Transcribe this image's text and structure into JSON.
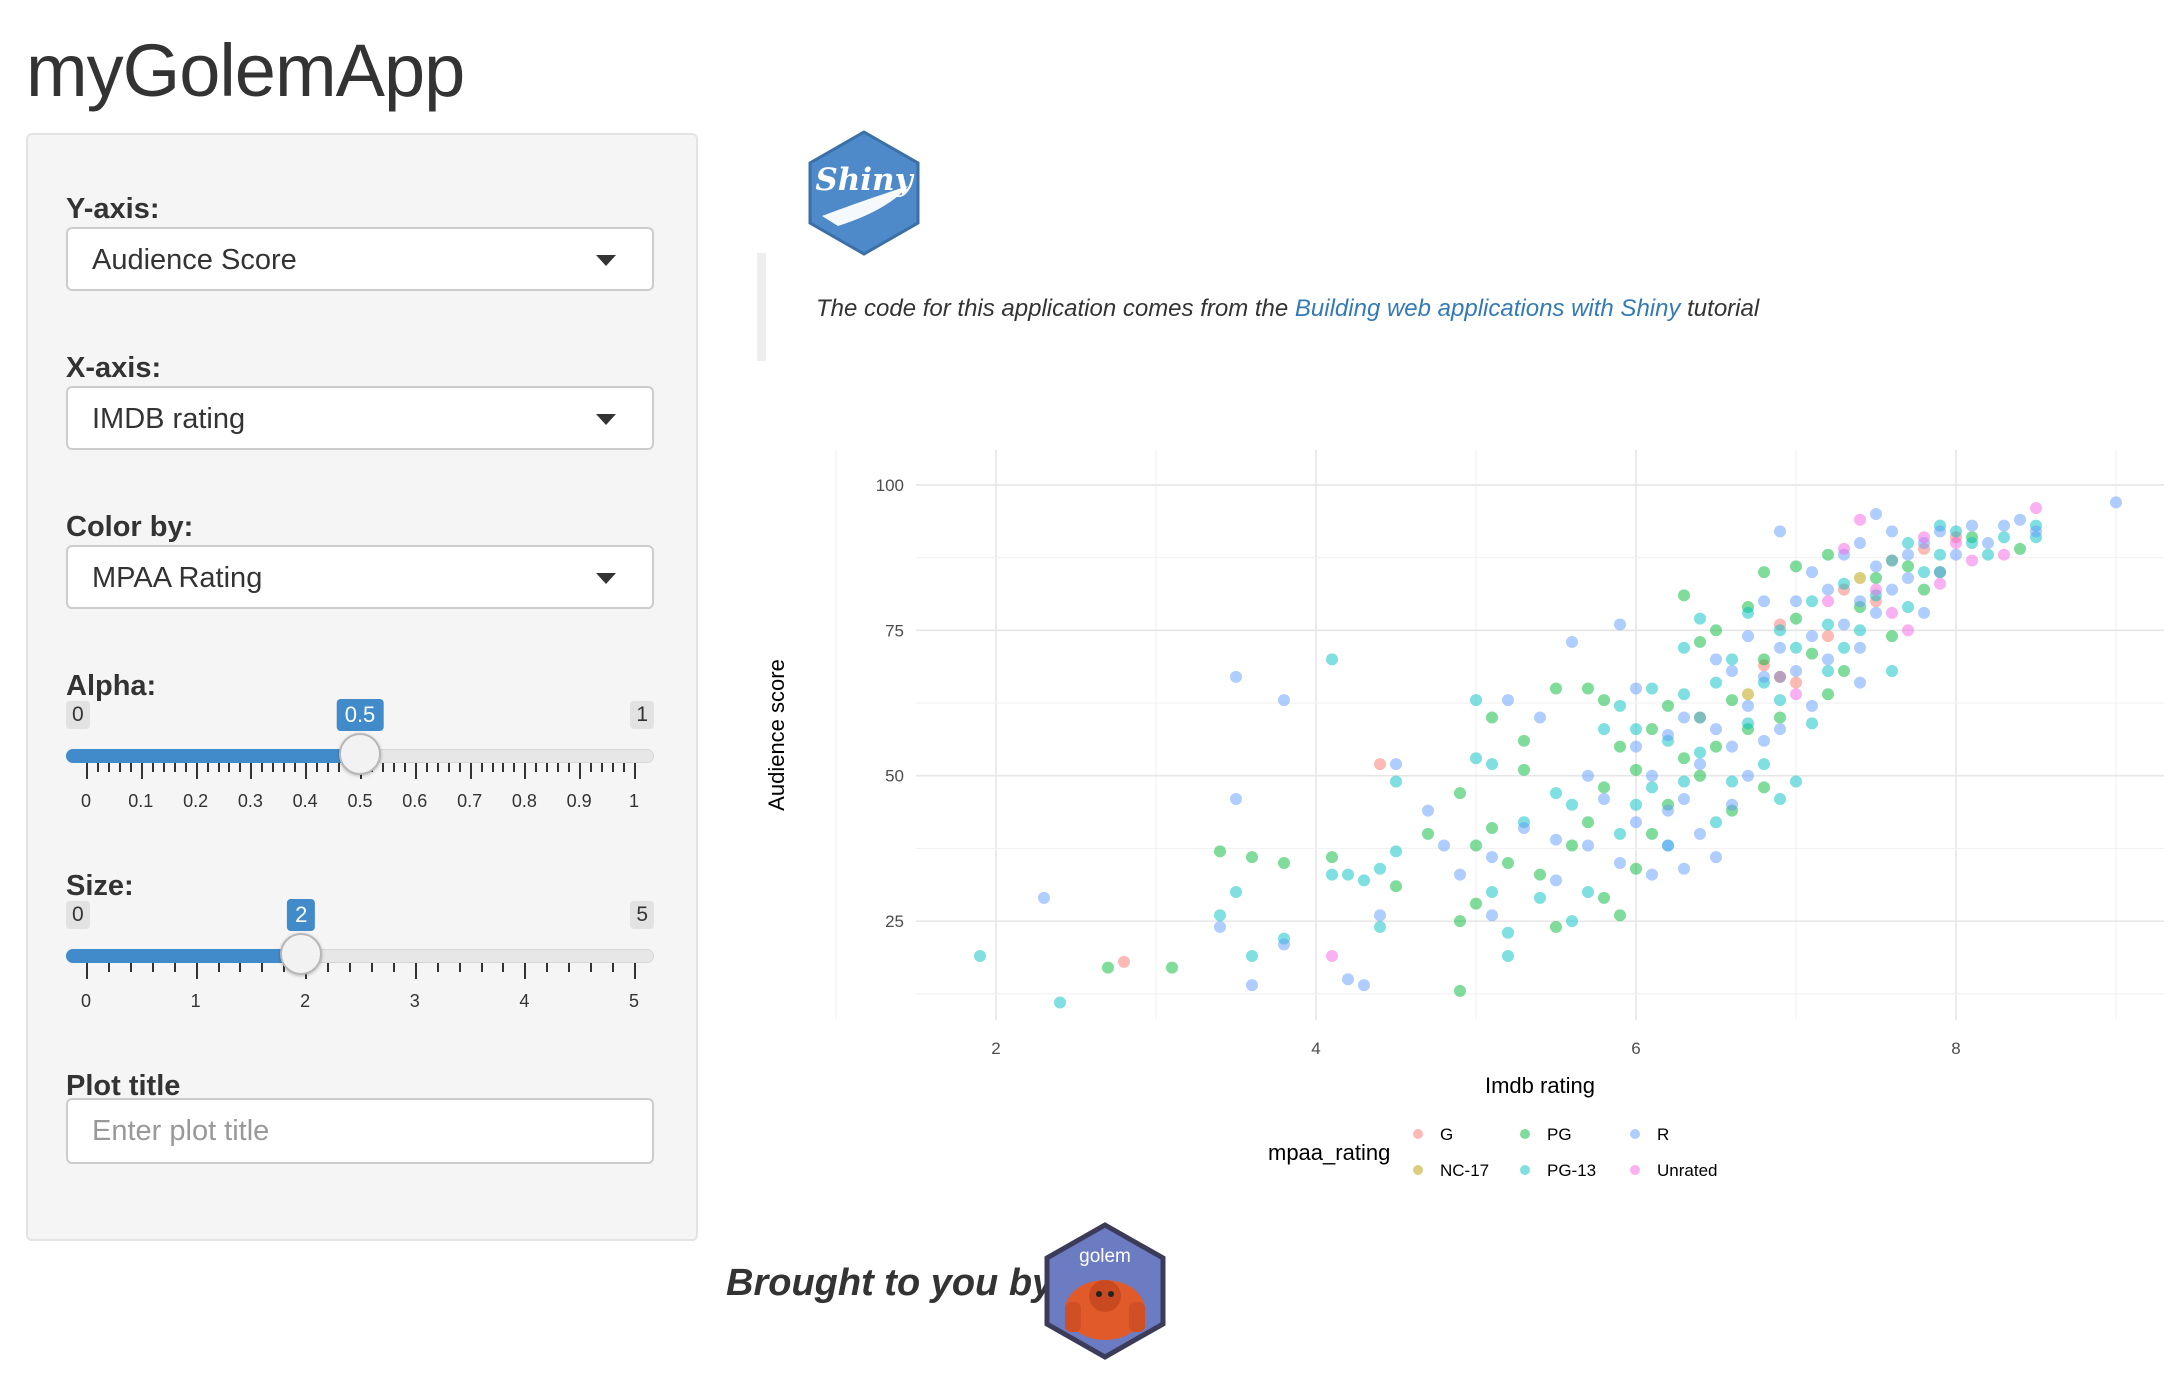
{
  "app": {
    "title": "myGolemApp"
  },
  "sidebar": {
    "y_axis": {
      "label": "Y-axis:",
      "value": "Audience Score"
    },
    "x_axis": {
      "label": "X-axis:",
      "value": "IMDB rating"
    },
    "color_by": {
      "label": "Color by:",
      "value": "MPAA Rating"
    },
    "alpha": {
      "label": "Alpha:",
      "min_label": "0",
      "max_label": "1",
      "value_label": "0.5",
      "min": 0,
      "max": 1,
      "value": 0.5,
      "tick_labels": [
        "0",
        "0.1",
        "0.2",
        "0.3",
        "0.4",
        "0.5",
        "0.6",
        "0.7",
        "0.8",
        "0.9",
        "1"
      ]
    },
    "size": {
      "label": "Size:",
      "min_label": "0",
      "max_label": "5",
      "value_label": "2",
      "min": 0,
      "max": 5,
      "value": 2,
      "tick_labels": [
        "0",
        "1",
        "2",
        "3",
        "4",
        "5"
      ]
    },
    "plot_title": {
      "label": "Plot title",
      "placeholder": "Enter plot title",
      "value": ""
    }
  },
  "main": {
    "shiny_logo_text": "Shiny",
    "quote": {
      "prefix": "The code for this application comes from the ",
      "link_text": "Building web applications with Shiny",
      "suffix": " tutorial"
    },
    "footer": {
      "brought_by": "Brought to you by:",
      "golem_logo_text": "golem"
    }
  },
  "chart_data": {
    "type": "scatter",
    "xlabel": "Imdb rating",
    "ylabel": "Audience score",
    "xlim": [
      1.5,
      9.3
    ],
    "ylim": [
      8,
      106
    ],
    "x_ticks": [
      2,
      4,
      6,
      8
    ],
    "y_ticks": [
      25,
      50,
      75,
      100
    ],
    "grid": true,
    "legend": {
      "title": "mpaa_rating",
      "position": "bottom"
    },
    "colors": {
      "G": "#F8766D",
      "NC-17": "#B79F00",
      "PG": "#00BA38",
      "PG-13": "#00BFC4",
      "R": "#619CFF",
      "Unrated": "#F564E3"
    },
    "series": [
      {
        "name": "G",
        "points": [
          [
            4.4,
            52
          ],
          [
            2.8,
            18
          ],
          [
            6.9,
            76
          ],
          [
            7.2,
            74
          ],
          [
            7.5,
            80
          ],
          [
            7.8,
            89
          ],
          [
            6.4,
            60
          ],
          [
            7.0,
            66
          ],
          [
            7.6,
            87
          ],
          [
            8.0,
            91
          ],
          [
            6.8,
            69
          ],
          [
            7.3,
            82
          ]
        ]
      },
      {
        "name": "NC-17",
        "points": [
          [
            6.7,
            64
          ],
          [
            7.4,
            84
          ]
        ]
      },
      {
        "name": "PG",
        "points": [
          [
            2.7,
            17
          ],
          [
            3.1,
            17
          ],
          [
            3.4,
            37
          ],
          [
            3.6,
            36
          ],
          [
            3.8,
            35
          ],
          [
            4.1,
            36
          ],
          [
            4.5,
            31
          ],
          [
            4.9,
            25
          ],
          [
            4.9,
            13
          ],
          [
            4.9,
            47
          ],
          [
            5.0,
            28
          ],
          [
            5.0,
            38
          ],
          [
            5.1,
            41
          ],
          [
            5.1,
            60
          ],
          [
            5.2,
            35
          ],
          [
            5.3,
            56
          ],
          [
            5.4,
            33
          ],
          [
            5.5,
            24
          ],
          [
            5.5,
            65
          ],
          [
            5.6,
            38
          ],
          [
            5.7,
            42
          ],
          [
            5.7,
            65
          ],
          [
            5.8,
            29
          ],
          [
            5.8,
            48
          ],
          [
            5.8,
            63
          ],
          [
            5.9,
            26
          ],
          [
            5.9,
            55
          ],
          [
            6.0,
            34
          ],
          [
            6.0,
            51
          ],
          [
            6.1,
            40
          ],
          [
            6.1,
            58
          ],
          [
            6.2,
            45
          ],
          [
            6.3,
            53
          ],
          [
            6.3,
            81
          ],
          [
            6.4,
            50
          ],
          [
            6.4,
            73
          ],
          [
            6.5,
            55
          ],
          [
            6.5,
            75
          ],
          [
            6.6,
            44
          ],
          [
            6.6,
            63
          ],
          [
            6.7,
            58
          ],
          [
            6.7,
            79
          ],
          [
            6.8,
            48
          ],
          [
            6.8,
            70
          ],
          [
            6.8,
            85
          ],
          [
            6.9,
            60
          ],
          [
            6.9,
            67
          ],
          [
            7.0,
            77
          ],
          [
            7.0,
            86
          ],
          [
            7.1,
            71
          ],
          [
            7.2,
            88
          ],
          [
            7.3,
            68
          ],
          [
            7.4,
            79
          ],
          [
            7.5,
            84
          ],
          [
            7.6,
            74
          ],
          [
            7.7,
            86
          ],
          [
            7.8,
            82
          ],
          [
            7.9,
            85
          ],
          [
            8.1,
            91
          ],
          [
            8.4,
            89
          ],
          [
            7.2,
            64
          ],
          [
            6.2,
            62
          ],
          [
            5.3,
            51
          ],
          [
            4.7,
            40
          ]
        ]
      },
      {
        "name": "PG-13",
        "points": [
          [
            1.9,
            19
          ],
          [
            2.4,
            11
          ],
          [
            3.4,
            26
          ],
          [
            3.5,
            30
          ],
          [
            3.6,
            19
          ],
          [
            3.8,
            22
          ],
          [
            4.1,
            33
          ],
          [
            4.2,
            33
          ],
          [
            4.3,
            32
          ],
          [
            4.4,
            24
          ],
          [
            4.5,
            37
          ],
          [
            4.5,
            49
          ],
          [
            4.1,
            70
          ],
          [
            5.0,
            63
          ],
          [
            5.0,
            53
          ],
          [
            5.1,
            30
          ],
          [
            5.2,
            23
          ],
          [
            5.2,
            19
          ],
          [
            5.3,
            42
          ],
          [
            5.4,
            29
          ],
          [
            5.5,
            47
          ],
          [
            5.6,
            25
          ],
          [
            5.6,
            45
          ],
          [
            5.7,
            30
          ],
          [
            5.8,
            58
          ],
          [
            5.9,
            40
          ],
          [
            5.9,
            62
          ],
          [
            6.0,
            45
          ],
          [
            6.0,
            58
          ],
          [
            6.1,
            48
          ],
          [
            6.1,
            65
          ],
          [
            6.2,
            38
          ],
          [
            6.2,
            56
          ],
          [
            6.3,
            49
          ],
          [
            6.3,
            72
          ],
          [
            6.4,
            54
          ],
          [
            6.4,
            60
          ],
          [
            6.4,
            77
          ],
          [
            6.5,
            42
          ],
          [
            6.5,
            66
          ],
          [
            6.6,
            49
          ],
          [
            6.6,
            70
          ],
          [
            6.7,
            59
          ],
          [
            6.7,
            78
          ],
          [
            6.8,
            52
          ],
          [
            6.8,
            66
          ],
          [
            6.9,
            46
          ],
          [
            6.9,
            63
          ],
          [
            6.9,
            75
          ],
          [
            7.0,
            49
          ],
          [
            7.0,
            72
          ],
          [
            7.1,
            59
          ],
          [
            7.1,
            80
          ],
          [
            7.2,
            68
          ],
          [
            7.2,
            76
          ],
          [
            7.3,
            72
          ],
          [
            7.4,
            75
          ],
          [
            7.5,
            81
          ],
          [
            7.6,
            68
          ],
          [
            7.6,
            87
          ],
          [
            7.7,
            79
          ],
          [
            7.7,
            90
          ],
          [
            7.8,
            85
          ],
          [
            7.9,
            88
          ],
          [
            8.0,
            92
          ],
          [
            8.1,
            90
          ],
          [
            8.2,
            88
          ],
          [
            8.3,
            91
          ],
          [
            8.5,
            93
          ],
          [
            8.5,
            91
          ],
          [
            7.9,
            93
          ],
          [
            7.3,
            83
          ],
          [
            6.3,
            64
          ],
          [
            5.1,
            52
          ],
          [
            4.4,
            34
          ]
        ]
      },
      {
        "name": "R",
        "points": [
          [
            2.3,
            29
          ],
          [
            3.5,
            67
          ],
          [
            3.8,
            63
          ],
          [
            3.5,
            46
          ],
          [
            3.4,
            24
          ],
          [
            3.6,
            14
          ],
          [
            3.8,
            21
          ],
          [
            4.2,
            15
          ],
          [
            4.3,
            14
          ],
          [
            4.4,
            26
          ],
          [
            4.5,
            52
          ],
          [
            4.7,
            44
          ],
          [
            4.8,
            38
          ],
          [
            5.1,
            36
          ],
          [
            5.1,
            26
          ],
          [
            5.2,
            63
          ],
          [
            5.3,
            41
          ],
          [
            5.4,
            60
          ],
          [
            5.5,
            32
          ],
          [
            5.6,
            73
          ],
          [
            5.7,
            38
          ],
          [
            5.7,
            50
          ],
          [
            5.8,
            46
          ],
          [
            5.9,
            35
          ],
          [
            5.9,
            76
          ],
          [
            6.0,
            42
          ],
          [
            6.0,
            55
          ],
          [
            6.0,
            65
          ],
          [
            6.1,
            33
          ],
          [
            6.1,
            50
          ],
          [
            6.2,
            38
          ],
          [
            6.2,
            57
          ],
          [
            6.3,
            34
          ],
          [
            6.3,
            46
          ],
          [
            6.3,
            60
          ],
          [
            6.4,
            40
          ],
          [
            6.4,
            52
          ],
          [
            6.5,
            36
          ],
          [
            6.5,
            58
          ],
          [
            6.5,
            70
          ],
          [
            6.6,
            45
          ],
          [
            6.6,
            55
          ],
          [
            6.6,
            68
          ],
          [
            6.7,
            50
          ],
          [
            6.7,
            62
          ],
          [
            6.7,
            74
          ],
          [
            6.8,
            56
          ],
          [
            6.8,
            67
          ],
          [
            6.8,
            80
          ],
          [
            6.9,
            58
          ],
          [
            6.9,
            72
          ],
          [
            6.9,
            92
          ],
          [
            7.0,
            68
          ],
          [
            7.0,
            80
          ],
          [
            7.1,
            62
          ],
          [
            7.1,
            74
          ],
          [
            7.1,
            85
          ],
          [
            7.2,
            70
          ],
          [
            7.2,
            82
          ],
          [
            7.3,
            76
          ],
          [
            7.3,
            88
          ],
          [
            7.4,
            72
          ],
          [
            7.4,
            80
          ],
          [
            7.4,
            90
          ],
          [
            7.5,
            78
          ],
          [
            7.5,
            86
          ],
          [
            7.5,
            95
          ],
          [
            7.6,
            82
          ],
          [
            7.6,
            92
          ],
          [
            7.7,
            84
          ],
          [
            7.7,
            88
          ],
          [
            7.8,
            78
          ],
          [
            7.8,
            90
          ],
          [
            7.9,
            85
          ],
          [
            7.9,
            92
          ],
          [
            8.0,
            88
          ],
          [
            8.1,
            93
          ],
          [
            8.2,
            90
          ],
          [
            8.3,
            93
          ],
          [
            8.4,
            94
          ],
          [
            8.5,
            92
          ],
          [
            9.0,
            97
          ],
          [
            7.4,
            66
          ],
          [
            6.2,
            44
          ],
          [
            5.5,
            39
          ],
          [
            4.9,
            33
          ]
        ]
      },
      {
        "name": "Unrated",
        "points": [
          [
            4.1,
            19
          ],
          [
            6.9,
            67
          ],
          [
            7.0,
            64
          ],
          [
            7.2,
            80
          ],
          [
            7.3,
            89
          ],
          [
            7.4,
            94
          ],
          [
            7.5,
            82
          ],
          [
            7.6,
            78
          ],
          [
            7.7,
            75
          ],
          [
            7.8,
            91
          ],
          [
            7.9,
            83
          ],
          [
            8.0,
            90
          ],
          [
            8.1,
            87
          ],
          [
            8.3,
            88
          ],
          [
            8.5,
            96
          ]
        ]
      }
    ]
  }
}
